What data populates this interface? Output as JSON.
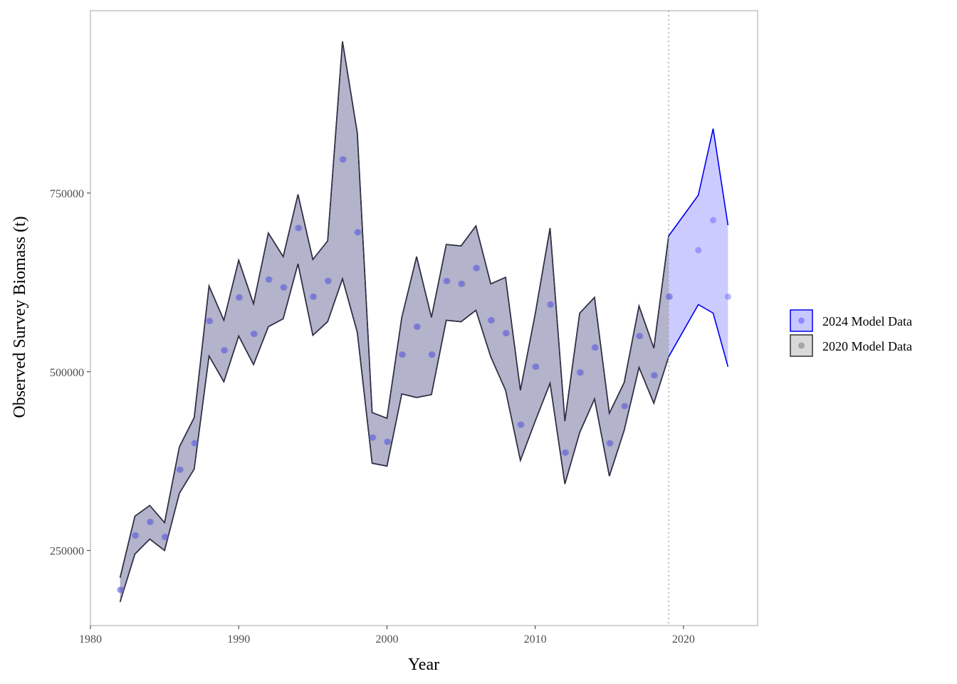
{
  "chart_data": {
    "type": "area",
    "xlabel": "Year",
    "ylabel": "Observed Survey Biomass (t)",
    "xlim": [
      1980,
      2025
    ],
    "ylim": [
      145000,
      1005000
    ],
    "x_ticks": [
      1980,
      1990,
      2000,
      2010,
      2020
    ],
    "y_ticks": [
      250000,
      500000,
      750000
    ],
    "x_tick_labels": [
      "1980",
      "1990",
      "2000",
      "2010",
      "2020"
    ],
    "y_tick_labels": [
      "250000",
      "500000",
      "750000"
    ],
    "vline_x": 2019,
    "grid": false,
    "legend_position": "right",
    "legend": [
      "2024 Model Data",
      "2020 Model Data"
    ],
    "series": [
      {
        "name": "2024 Model Data",
        "color": "#0000ee",
        "fill": "#8c8cff",
        "x": [
          1982,
          1983,
          1984,
          1985,
          1986,
          1987,
          1988,
          1989,
          1990,
          1991,
          1992,
          1993,
          1994,
          1995,
          1996,
          1997,
          1998,
          1999,
          2000,
          2001,
          2002,
          2003,
          2004,
          2005,
          2006,
          2007,
          2008,
          2009,
          2010,
          2011,
          2012,
          2013,
          2014,
          2015,
          2016,
          2017,
          2018,
          2019,
          2021,
          2022,
          2023
        ],
        "obs": [
          195000,
          271000,
          290000,
          269000,
          363000,
          400000,
          571000,
          530000,
          604000,
          553000,
          629000,
          618000,
          701000,
          605000,
          627000,
          797000,
          695000,
          408000,
          402000,
          524000,
          563000,
          524000,
          627000,
          623000,
          645000,
          572000,
          554000,
          426000,
          507000,
          594000,
          387000,
          499000,
          534000,
          400000,
          452000,
          550000,
          495000,
          605000,
          670000,
          712000,
          605000
        ],
        "lower": [
          178000,
          245000,
          266000,
          250000,
          330000,
          364000,
          522000,
          486000,
          550000,
          510000,
          563000,
          574000,
          651000,
          551000,
          570000,
          630000,
          555000,
          372000,
          368000,
          469000,
          464000,
          468000,
          572000,
          570000,
          586000,
          521000,
          474000,
          376000,
          431000,
          484000,
          343000,
          415000,
          462000,
          354000,
          418000,
          506000,
          456000,
          521000,
          594000,
          582000,
          507000
        ],
        "upper": [
          212000,
          298000,
          313000,
          289000,
          395000,
          436000,
          620000,
          572000,
          656000,
          595000,
          694000,
          661000,
          748000,
          657000,
          683000,
          962000,
          834000,
          443000,
          435000,
          576000,
          661000,
          576000,
          678000,
          676000,
          704000,
          623000,
          632000,
          474000,
          581000,
          701000,
          431000,
          582000,
          604000,
          442000,
          485000,
          592000,
          533000,
          690000,
          747000,
          840000,
          705000
        ]
      },
      {
        "name": "2020 Model Data",
        "color": "#333333",
        "fill": "#b3b3b3",
        "x": [
          1982,
          1983,
          1984,
          1985,
          1986,
          1987,
          1988,
          1989,
          1990,
          1991,
          1992,
          1993,
          1994,
          1995,
          1996,
          1997,
          1998,
          1999,
          2000,
          2001,
          2002,
          2003,
          2004,
          2005,
          2006,
          2007,
          2008,
          2009,
          2010,
          2011,
          2012,
          2013,
          2014,
          2015,
          2016,
          2017,
          2018,
          2019
        ],
        "obs": [
          195000,
          271000,
          290000,
          269000,
          363000,
          400000,
          571000,
          530000,
          604000,
          553000,
          629000,
          618000,
          701000,
          605000,
          627000,
          797000,
          695000,
          408000,
          402000,
          524000,
          563000,
          524000,
          627000,
          623000,
          645000,
          572000,
          554000,
          426000,
          507000,
          594000,
          387000,
          499000,
          534000,
          400000,
          452000,
          550000,
          495000,
          605000
        ],
        "lower": [
          178000,
          245000,
          266000,
          250000,
          330000,
          364000,
          522000,
          486000,
          550000,
          510000,
          563000,
          574000,
          651000,
          551000,
          570000,
          630000,
          555000,
          372000,
          368000,
          469000,
          464000,
          468000,
          572000,
          570000,
          586000,
          521000,
          474000,
          376000,
          431000,
          484000,
          343000,
          415000,
          462000,
          354000,
          418000,
          506000,
          456000,
          521000
        ],
        "upper": [
          212000,
          298000,
          313000,
          289000,
          395000,
          436000,
          620000,
          572000,
          656000,
          595000,
          694000,
          661000,
          748000,
          657000,
          683000,
          962000,
          834000,
          443000,
          435000,
          576000,
          661000,
          576000,
          678000,
          676000,
          704000,
          623000,
          632000,
          474000,
          581000,
          701000,
          431000,
          582000,
          604000,
          442000,
          485000,
          592000,
          533000,
          690000
        ]
      }
    ]
  }
}
